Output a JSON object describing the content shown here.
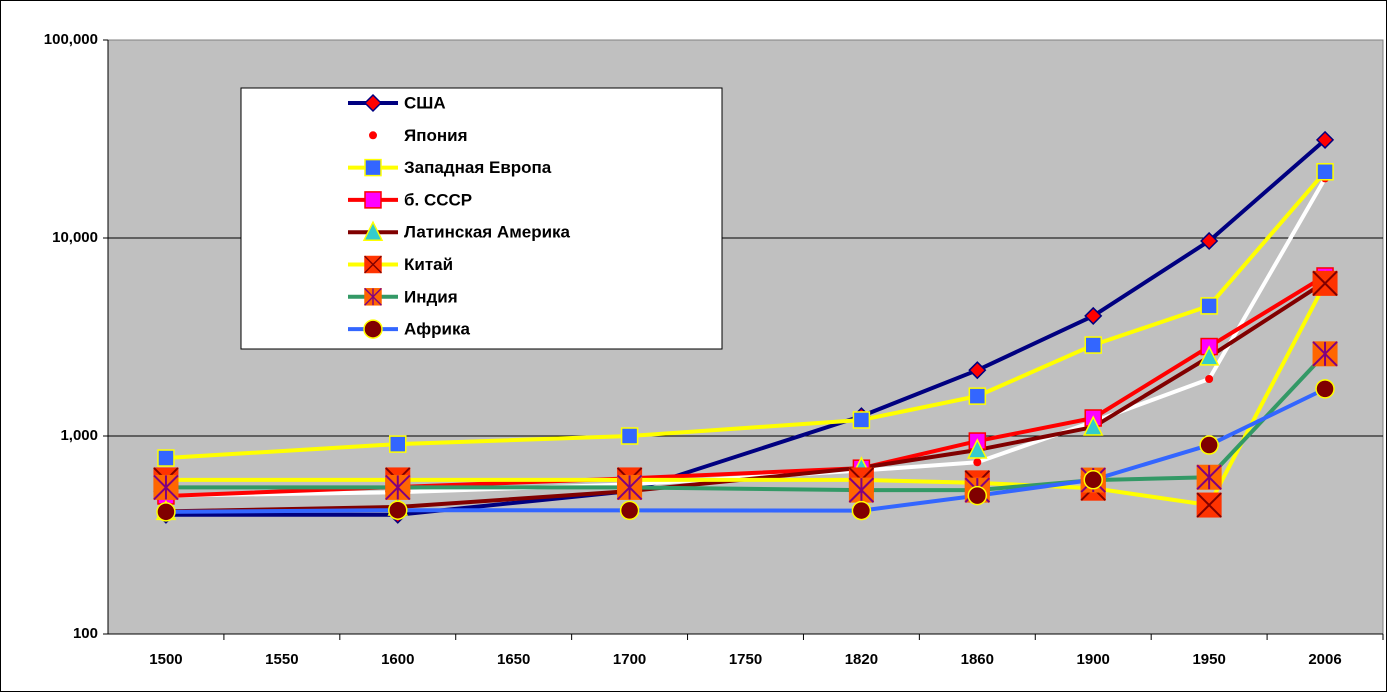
{
  "chart_data": {
    "type": "line",
    "categories": [
      "1500",
      "1550",
      "1600",
      "1650",
      "1700",
      "1750",
      "1820",
      "1860",
      "1900",
      "1950",
      "2006"
    ],
    "log_scale": true,
    "connect_gaps": true,
    "grid": true,
    "legend": "upper left",
    "ylim": [
      100,
      100000
    ],
    "yticks": [
      100,
      {
        "value": 1000,
        "label": "1,000"
      },
      {
        "value": 10000,
        "label": "10,000"
      },
      {
        "value": 100000,
        "label": "100,000"
      }
    ],
    "series": [
      {
        "name": "США",
        "color": "#000080",
        "marker": "diamond",
        "marker_fill": "#ff0000",
        "marker_stroke": "#000080",
        "values": [
          400,
          null,
          400,
          null,
          527,
          null,
          1260,
          2150,
          4040,
          9660,
          31300
        ]
      },
      {
        "name": "Япония",
        "color": "#ffffff",
        "marker": "dot",
        "marker_fill": "#ff0000",
        "marker_stroke": "#ff0000",
        "values": [
          500,
          null,
          520,
          null,
          570,
          null,
          669,
          737,
          1180,
          1940,
          20000
        ]
      },
      {
        "name": "Западная Европа",
        "color": "#ffff00",
        "marker": "square",
        "marker_fill": "#3366ff",
        "marker_stroke": "#ffff00",
        "values": [
          774,
          null,
          910,
          null,
          1000,
          null,
          1205,
          1590,
          2880,
          4540,
          21600
        ]
      },
      {
        "name": "б. СССР",
        "color": "#ff0000",
        "marker": "square",
        "marker_fill": "#ff00ff",
        "marker_stroke": "#ff0000",
        "values": [
          498,
          null,
          553,
          null,
          611,
          null,
          688,
          943,
          1233,
          2830,
          6430
        ]
      },
      {
        "name": "Латинская Америка",
        "color": "#800000",
        "marker": "triangle",
        "marker_fill": "#33cccc",
        "marker_stroke": "#ffff00",
        "values": [
          416,
          null,
          438,
          null,
          527,
          null,
          691,
          850,
          1110,
          2510,
          6000
        ]
      },
      {
        "name": "Китай",
        "color": "#ffff00",
        "marker": "xsquare",
        "marker_fill": "#ff3300",
        "marker_stroke": "#800000",
        "values": [
          600,
          null,
          600,
          null,
          600,
          null,
          600,
          580,
          545,
          448,
          5900
        ]
      },
      {
        "name": "Индия",
        "color": "#339966",
        "marker": "starsquare",
        "marker_fill": "#ff6600",
        "marker_stroke": "#800080",
        "values": [
          550,
          null,
          550,
          null,
          550,
          null,
          533,
          533,
          599,
          619,
          2600
        ]
      },
      {
        "name": "Африка",
        "color": "#3366ff",
        "marker": "circle",
        "marker_fill": "#800000",
        "marker_stroke": "#ffff00",
        "values": [
          414,
          null,
          422,
          null,
          421,
          null,
          420,
          500,
          601,
          900,
          1730
        ]
      }
    ]
  }
}
